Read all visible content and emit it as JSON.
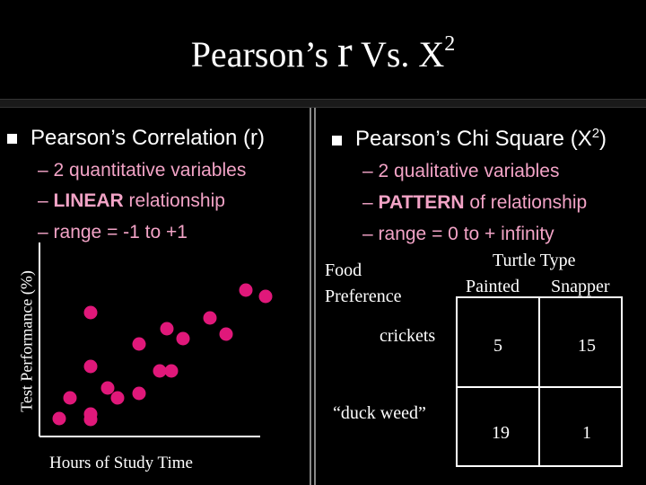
{
  "title": {
    "main": "Pearson’s ",
    "r": "r",
    "vs": " Vs. X",
    "sup": "2"
  },
  "left": {
    "heading": "Pearson’s Correlation (r)",
    "items": [
      {
        "dash": "–",
        "bold": "",
        "text": "2 quantitative variables"
      },
      {
        "dash": "–",
        "bold": "LINEAR",
        "text": " relationship"
      },
      {
        "dash": "–",
        "bold": "",
        "text": "range = -1 to +1"
      }
    ],
    "y_axis_label": "Test Performance (%)",
    "x_axis_label": "Hours of Study Time"
  },
  "right": {
    "heading": "Pearson’s Chi Square (X",
    "heading_sup": "2",
    "heading_end": ")",
    "items": [
      {
        "dash": "–",
        "bold": "",
        "text": "2 qualitative variables"
      },
      {
        "dash": "–",
        "bold": "PATTERN",
        "text": " of relationship"
      },
      {
        "dash": "–",
        "bold": "",
        "text": "range = 0 to + infinity"
      }
    ],
    "table": {
      "col_group_label": "Turtle Type",
      "col_labels": [
        "Painted",
        "Snapper"
      ],
      "row_group_label_1": "Food",
      "row_group_label_2": "Preference",
      "row_labels": [
        "crickets",
        "“duck weed”"
      ],
      "cells": [
        [
          "5",
          "15"
        ],
        [
          "19",
          "1"
        ]
      ]
    }
  },
  "chart_data": {
    "type": "scatter",
    "xlabel": "Hours of Study Time",
    "ylabel": "Test Performance (%)",
    "point_color": "#e0187a",
    "points": [
      [
        66,
        466
      ],
      [
        101,
        461
      ],
      [
        101,
        467
      ],
      [
        78,
        443
      ],
      [
        120,
        432
      ],
      [
        131,
        443
      ],
      [
        155,
        438
      ],
      [
        101,
        408
      ],
      [
        178,
        413
      ],
      [
        191,
        413
      ],
      [
        155,
        383
      ],
      [
        186,
        366
      ],
      [
        204,
        377
      ],
      [
        101,
        348
      ],
      [
        234,
        354
      ],
      [
        252,
        372
      ],
      [
        274,
        323
      ],
      [
        296,
        330
      ]
    ]
  }
}
